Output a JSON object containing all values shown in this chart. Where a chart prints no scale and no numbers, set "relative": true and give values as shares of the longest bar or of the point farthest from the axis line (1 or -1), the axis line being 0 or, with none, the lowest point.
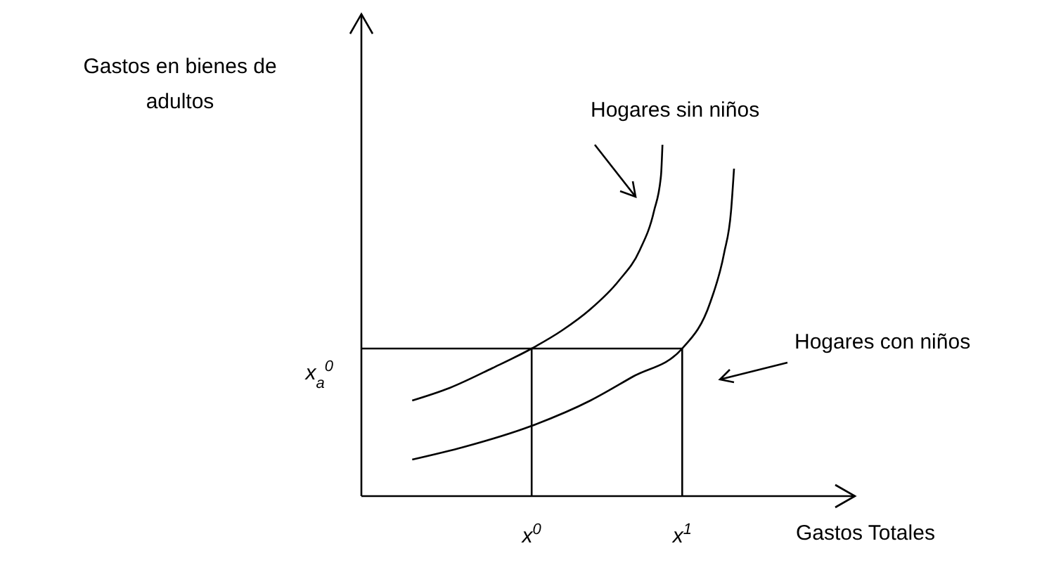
{
  "chart_data": {
    "type": "line",
    "relative": true,
    "legend": false,
    "ylabel": "Gastos en bienes de adultos",
    "xlabel": "Gastos Totales",
    "xlim": [
      0,
      1
    ],
    "xticks": [
      {
        "value": 0.345,
        "label": "x$^{0}$"
      },
      {
        "value": 0.65,
        "label": "x$^{1}$"
      }
    ],
    "annotations": [
      {
        "text": "x$_{a}$$^{0}$",
        "x": 0,
        "y": 0.42
      }
    ],
    "series": [
      {
        "name": "Hogares sin niños",
        "color": "#000000",
        "x": [
          0.103,
          0.179,
          0.265,
          0.345,
          0.407,
          0.464,
          0.521,
          0.564,
          0.593,
          0.607,
          0.61
        ],
        "values": [
          0.272,
          0.308,
          0.364,
          0.42,
          0.472,
          0.532,
          0.612,
          0.7,
          0.812,
          0.912,
          1
        ]
      },
      {
        "name": "Hogares con niños",
        "color": "#000000",
        "x": [
          0.103,
          0.208,
          0.345,
          0.464,
          0.55,
          0.65,
          0.707,
          0.735,
          0.749,
          0.755
        ],
        "values": [
          0.104,
          0.14,
          0.2,
          0.272,
          0.34,
          0.42,
          0.552,
          0.692,
          0.812,
          0.932
        ]
      },
      {
        "color": "#000000",
        "x": [
          0,
          0.65,
          0.65
        ],
        "values": [
          0.42,
          0.42,
          0
        ]
      },
      {
        "color": "#000000",
        "x": [
          0.345,
          0.345
        ],
        "values": [
          0.42,
          0
        ]
      }
    ]
  }
}
